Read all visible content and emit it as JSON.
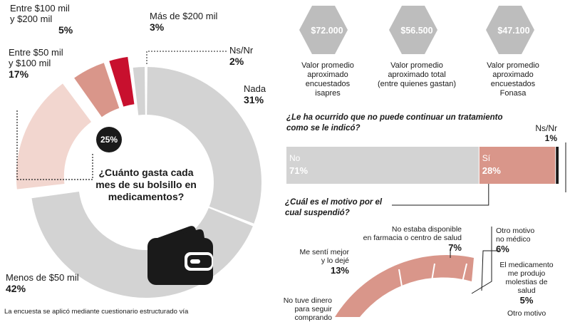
{
  "donut": {
    "question": "¿Cuánto gasta cada mes de su bolsillo en medicamentos?",
    "badge": "25%",
    "segments": [
      {
        "label": "Nada",
        "value": 31,
        "pct": "31%",
        "color": "#d3d3d3"
      },
      {
        "label": "Menos de $50 mil",
        "value": 42,
        "pct": "42%",
        "color": "#d3d3d3"
      },
      {
        "label": "Entre $50 mil y $100 mil",
        "value": 17,
        "pct": "17%",
        "color": "#f2d6cf"
      },
      {
        "label": "Entre $100 mil y $200 mil",
        "value": 5,
        "pct": "5%",
        "color": "#d9968a"
      },
      {
        "label": "Más de $200 mil",
        "value": 3,
        "pct": "3%",
        "color": "#c8102e"
      },
      {
        "label": "Ns/Nr",
        "value": 2,
        "pct": "2%",
        "color": "#d3d3d3"
      }
    ],
    "label_lines": {
      "e50_a": "Entre $50 mil",
      "e50_b": "y $100 mil",
      "e100_a": "Entre $100 mil",
      "e100_b": "y $200 mil"
    }
  },
  "averages": [
    {
      "value": "$72.000",
      "caption": [
        "Valor promedio",
        "aproximado",
        "encuestados",
        "isapres"
      ]
    },
    {
      "value": "$56.500",
      "caption": [
        "Valor promedio",
        "aproximado total",
        "(entre quienes gastan)"
      ]
    },
    {
      "value": "$47.100",
      "caption": [
        "Valor promedio",
        "aproximado",
        "encuestados",
        "Fonasa"
      ]
    }
  ],
  "treatment": {
    "question_a": "¿Le ha ocurrido que no puede continuar un tratamiento",
    "question_b": "como se le indicó?",
    "bars": [
      {
        "label": "No",
        "value": 71,
        "pct": "71%",
        "color": "#d3d3d3"
      },
      {
        "label": "Sí",
        "value": 28,
        "pct": "28%",
        "color": "#d9968a"
      },
      {
        "label": "Ns/Nr",
        "value": 1,
        "pct": "1%",
        "color": "#1a1a1a"
      }
    ]
  },
  "reason": {
    "question_a": "¿Cuál es el motivo por el",
    "question_b": "cual suspendió?",
    "items": [
      {
        "lines": [
          "No estaba disponible",
          "en farmacia o centro de salud"
        ],
        "pct": "7%"
      },
      {
        "lines": [
          "Otro motivo",
          "no médico"
        ],
        "pct": "6%"
      },
      {
        "lines": [
          "Me sentí mejor",
          "y lo dejé"
        ],
        "pct": "13%"
      },
      {
        "lines": [
          "El medicamento",
          "me produjo",
          "molestias de",
          "salud"
        ],
        "pct": "5%"
      },
      {
        "lines": [
          "No tuve dinero",
          "para seguir",
          "comprando"
        ],
        "pct": ""
      },
      {
        "lines": [
          "Otro motivo"
        ],
        "pct": ""
      }
    ]
  },
  "footnote": "La encuesta se aplicó mediante cuestionario estructurado vía",
  "chart_data": [
    {
      "type": "pie",
      "title": "¿Cuánto gasta cada mes de su bolsillo en medicamentos?",
      "categories": [
        "Nada",
        "Menos de $50 mil",
        "Entre $50 mil y $100 mil",
        "Entre $100 mil y $200 mil",
        "Más de $200 mil",
        "Ns/Nr"
      ],
      "values": [
        31,
        42,
        17,
        5,
        3,
        2
      ]
    },
    {
      "type": "bar",
      "title": "¿Le ha ocurrido que no puede continuar un tratamiento como se le indicó?",
      "categories": [
        "No",
        "Sí",
        "Ns/Nr"
      ],
      "values": [
        71,
        28,
        1
      ]
    }
  ]
}
